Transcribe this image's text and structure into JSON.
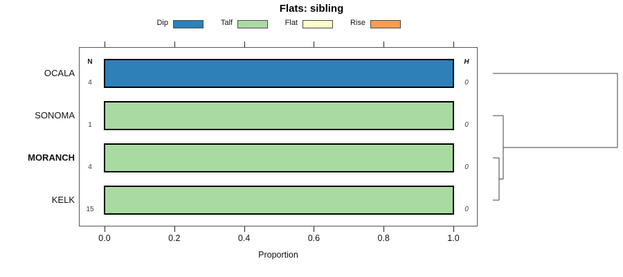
{
  "title": "Flats: sibling",
  "legend": {
    "items": [
      {
        "label": "Dip",
        "color": "#2e80b9"
      },
      {
        "label": "Talf",
        "color": "#a9daa1"
      },
      {
        "label": "Flat",
        "color": "#fdfdc8"
      },
      {
        "label": "Rise",
        "color": "#f89c54"
      }
    ]
  },
  "chart_data": {
    "type": "bar",
    "orientation": "horizontal",
    "stacked": true,
    "title": "Flats: sibling",
    "xlabel": "Proportion",
    "xlim": [
      0,
      1
    ],
    "xticks": [
      0.0,
      0.2,
      0.4,
      0.6,
      0.8,
      1.0
    ],
    "xtick_labels": [
      "0.0",
      "0.2",
      "0.4",
      "0.6",
      "0.8",
      "1.0"
    ],
    "grid": false,
    "legend_position": "top",
    "categories": [
      "OCALA",
      "SONOMA",
      "MORANCH",
      "KELK"
    ],
    "bold_categories": [
      "MORANCH"
    ],
    "n_label": "N",
    "n_values": [
      4,
      1,
      4,
      15
    ],
    "h_label": "H",
    "h_values": [
      0,
      0,
      0,
      0
    ],
    "series": [
      {
        "name": "Dip",
        "color": "#2e80b9",
        "values": [
          1,
          0,
          0,
          0
        ]
      },
      {
        "name": "Talf",
        "color": "#a9daa1",
        "values": [
          0,
          1,
          1,
          1
        ]
      },
      {
        "name": "Flat",
        "color": "#fdfdc8",
        "values": [
          0,
          0,
          0,
          0
        ]
      },
      {
        "name": "Rise",
        "color": "#f89c54",
        "values": [
          0,
          0,
          0,
          0
        ]
      }
    ],
    "dendrogram": {
      "leaves": [
        "OCALA",
        "SONOMA",
        "MORANCH",
        "KELK"
      ],
      "merges": [
        {
          "members": [
            "MORANCH",
            "KELK"
          ],
          "height": 0.05
        },
        {
          "members": [
            "SONOMA",
            "@0"
          ],
          "height": 0.083
        },
        {
          "members": [
            "OCALA",
            "@1"
          ],
          "height": 1.0
        }
      ],
      "line_color": "#3f3f3f"
    }
  }
}
